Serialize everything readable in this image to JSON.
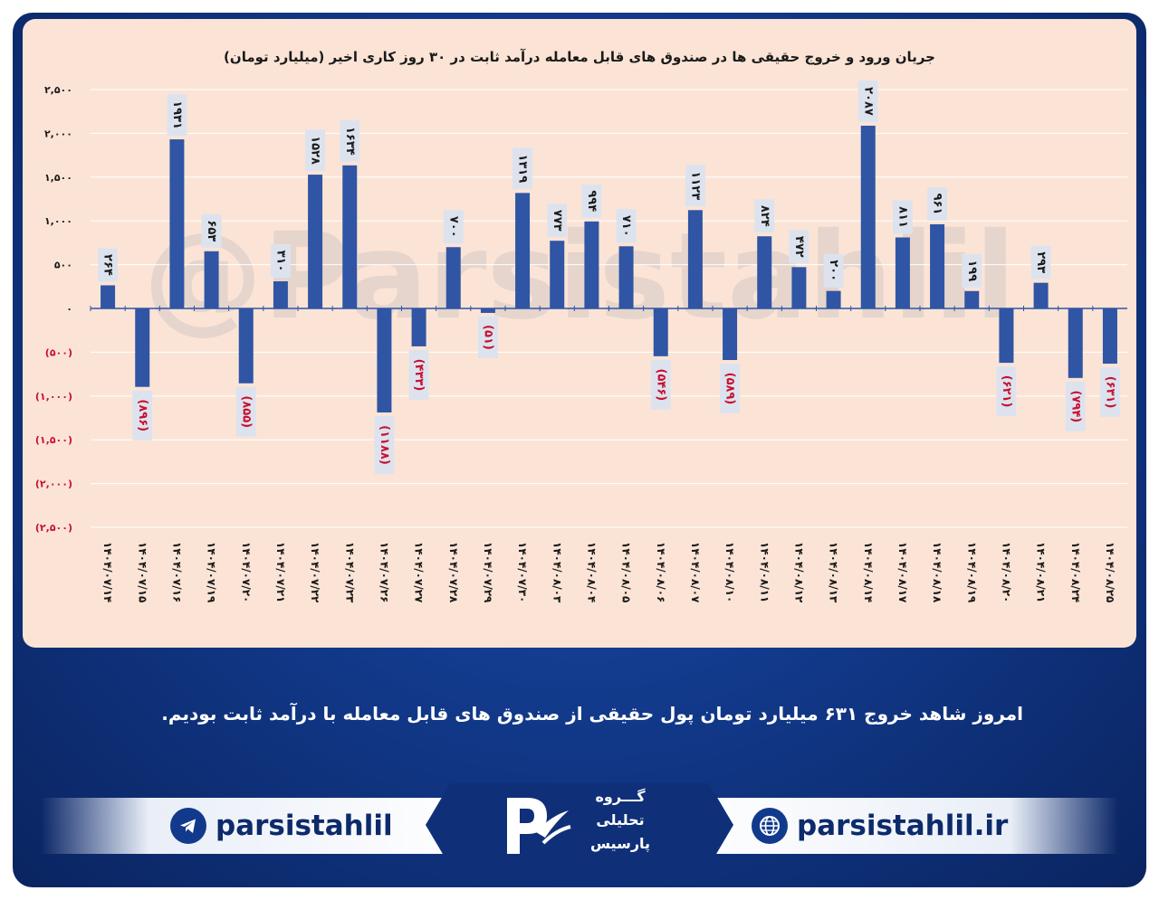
{
  "chart_data": {
    "type": "bar",
    "title": "جریان ورود و خروج حقیقی ها در صندوق های قابل معامله درآمد ثابت در ۳۰ روز کاری اخیر (میلیارد تومان)",
    "categories": [
      "۱۴۰۴/۰۷/۱۴",
      "۱۴۰۴/۰۷/۱۵",
      "۱۴۰۴/۰۷/۱۶",
      "۱۴۰۴/۰۷/۱۹",
      "۱۴۰۴/۰۷/۲۰",
      "۱۴۰۴/۰۷/۲۱",
      "۱۴۰۴/۰۷/۲۲",
      "۱۴۰۴/۰۷/۲۳",
      "۱۴۰۴/۰۷/۲۶",
      "۱۴۰۴/۰۷/۲۷",
      "۱۴۰۴/۰۷/۲۸",
      "۱۴۰۴/۰۷/۲۹",
      "۱۴۰۴/۰۷/۳۰",
      "۱۴۰۴/۰۸/۰۳",
      "۱۴۰۴/۰۸/۰۴",
      "۱۴۰۴/۰۸/۰۵",
      "۱۴۰۴/۰۸/۰۶",
      "۱۴۰۴/۰۸/۰۷",
      "۱۴۰۴/۰۸/۱۰",
      "۱۴۰۴/۰۸/۱۱",
      "۱۴۰۴/۰۸/۱۲",
      "۱۴۰۴/۰۸/۱۳",
      "۱۴۰۴/۰۸/۱۴",
      "۱۴۰۴/۰۸/۱۷",
      "۱۴۰۴/۰۸/۱۸",
      "۱۴۰۴/۰۸/۱۹",
      "۱۴۰۴/۰۸/۲۰",
      "۱۴۰۴/۰۸/۲۱",
      "۱۴۰۴/۰۸/۲۴",
      "۱۴۰۴/۰۸/۲۵"
    ],
    "values": [
      264,
      -896,
      1931,
      653,
      -855,
      310,
      1528,
      1634,
      -1188,
      -433,
      700,
      -51,
      1319,
      773,
      994,
      710,
      -546,
      1123,
      -589,
      824,
      472,
      200,
      2087,
      811,
      961,
      199,
      -621,
      293,
      -794,
      -631
    ],
    "data_labels": [
      "۲۶۴",
      "(۸۹۶)",
      "۱۹۳۱",
      "۶۵۳",
      "(۸۵۵)",
      "۳۱۰",
      "۱۵۲۸",
      "۱۶۳۴",
      "(۱۱۸۸)",
      "(۴۳۳)",
      "۷۰۰",
      "(۵۱)",
      "۱۳۱۹",
      "۷۷۳",
      "۹۹۴",
      "۷۱۰",
      "(۵۴۶)",
      "۱۱۲۳",
      "(۵۸۹)",
      "۸۲۴",
      "۴۷۲",
      "۲۰۰",
      "۲۰۸۷",
      "۸۱۱",
      "۹۶۱",
      "۱۹۹",
      "(۶۲۱)",
      "۲۹۳",
      "(۷۹۴)",
      "(۶۳۱)"
    ],
    "ylim": [
      -2500,
      2500
    ],
    "y_ticks": [
      2500,
      2000,
      1500,
      1000,
      500,
      0,
      -500,
      -1000,
      -1500,
      -2000,
      -2500
    ],
    "y_tick_labels": [
      "۲,۵۰۰",
      "۲,۰۰۰",
      "۱,۵۰۰",
      "۱,۰۰۰",
      "۵۰۰",
      "۰",
      "(۵۰۰)",
      "(۱,۰۰۰)",
      "(۱,۵۰۰)",
      "(۲,۰۰۰)",
      "(۲,۵۰۰)"
    ],
    "grid": true,
    "xlabel": "",
    "ylabel": "",
    "watermark": "@Parsistahlil",
    "colors": {
      "bar": "#2f55a4",
      "positive_label": "#1a1a1a",
      "negative_label": "#c8102e",
      "label_box": "#dde3ee",
      "grid": "#ffffff",
      "background": "#fbe4d6"
    }
  },
  "headline": "امروز شاهد خروج ۶۳۱ میلیارد تومان پول حقیقی از صندوق های قابل معامله با درآمد ثابت بودیم.",
  "footer": {
    "telegram_handle": "parsistahlil",
    "telegram_icon": "telegram-icon",
    "website": "parsistahlil.ir",
    "website_icon": "globe-icon",
    "logo_text_line1": "گـــروه",
    "logo_text_line2": "تحلیلی",
    "logo_text_line3": "پارسیس"
  }
}
